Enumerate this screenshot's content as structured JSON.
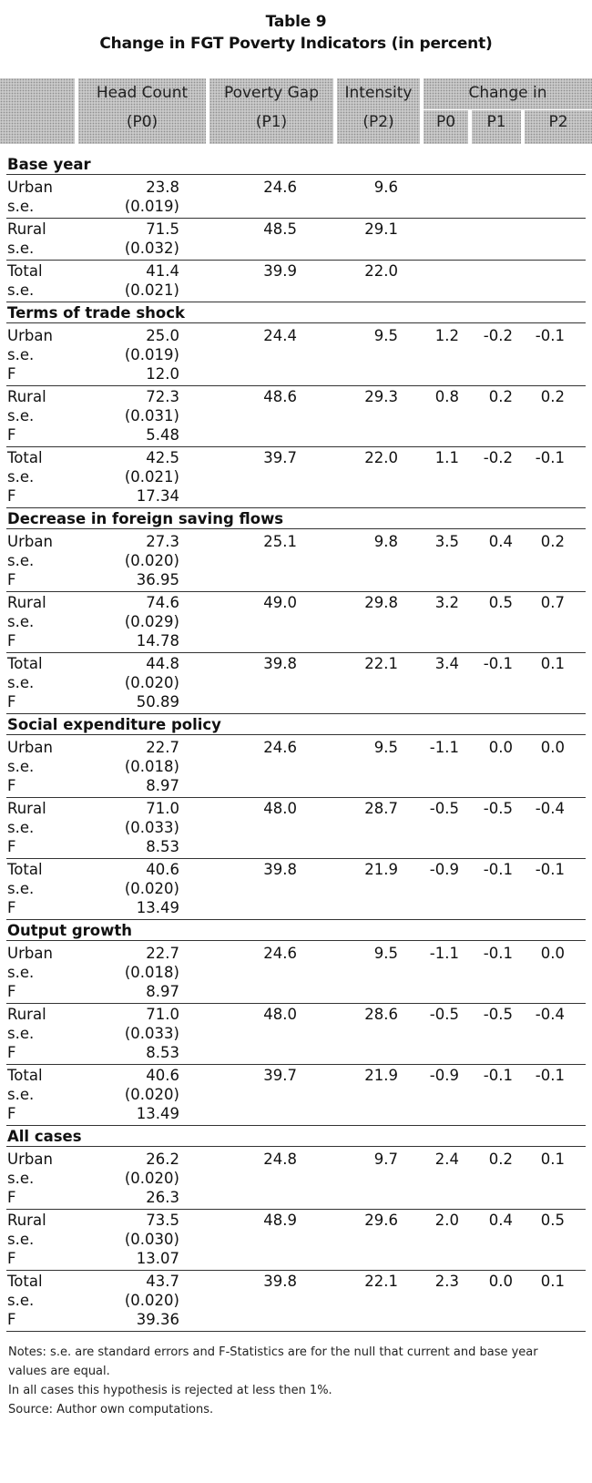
{
  "title": "Table 9",
  "subtitle": "Change in FGT Poverty Indicators (in percent)",
  "header": {
    "head_count": "Head Count",
    "head_count_sub": "(P0)",
    "poverty_gap": "Poverty Gap",
    "poverty_gap_sub": "(P1)",
    "intensity": "Intensity",
    "intensity_sub": "(P2)",
    "change_in": "Change in",
    "change_cols": [
      "P0",
      "P1",
      "P2"
    ]
  },
  "sections": [
    {
      "title": "Base year",
      "groups": [
        {
          "label": "Urban",
          "p0": "23.8",
          "se": "(0.019)",
          "f": null,
          "p1": "24.6",
          "p2": "9.6",
          "c0": "",
          "c1": "",
          "c2": ""
        },
        {
          "label": "Rural",
          "p0": "71.5",
          "se": "(0.032)",
          "f": null,
          "p1": "48.5",
          "p2": "29.1",
          "c0": "",
          "c1": "",
          "c2": ""
        },
        {
          "label": "Total",
          "p0": "41.4",
          "se": "(0.021)",
          "f": null,
          "p1": "39.9",
          "p2": "22.0",
          "c0": "",
          "c1": "",
          "c2": ""
        }
      ]
    },
    {
      "title": "Terms of trade shock",
      "groups": [
        {
          "label": "Urban",
          "p0": "25.0",
          "se": "(0.019)",
          "f": "12.0",
          "p1": "24.4",
          "p2": "9.5",
          "c0": "1.2",
          "c1": "-0.2",
          "c2": "-0.1"
        },
        {
          "label": "Rural",
          "p0": "72.3",
          "se": "(0.031)",
          "f": "5.48",
          "p1": "48.6",
          "p2": "29.3",
          "c0": "0.8",
          "c1": "0.2",
          "c2": "0.2"
        },
        {
          "label": "Total",
          "p0": "42.5",
          "se": "(0.021)",
          "f": "17.34",
          "p1": "39.7",
          "p2": "22.0",
          "c0": "1.1",
          "c1": "-0.2",
          "c2": "-0.1"
        }
      ]
    },
    {
      "title": "Decrease in foreign saving flows",
      "groups": [
        {
          "label": "Urban",
          "p0": "27.3",
          "se": "(0.020)",
          "f": "36.95",
          "p1": "25.1",
          "p2": "9.8",
          "c0": "3.5",
          "c1": "0.4",
          "c2": "0.2"
        },
        {
          "label": "Rural",
          "p0": "74.6",
          "se": "(0.029)",
          "f": "14.78",
          "p1": "49.0",
          "p2": "29.8",
          "c0": "3.2",
          "c1": "0.5",
          "c2": "0.7"
        },
        {
          "label": "Total",
          "p0": "44.8",
          "se": "(0.020)",
          "f": "50.89",
          "p1": "39.8",
          "p2": "22.1",
          "c0": "3.4",
          "c1": "-0.1",
          "c2": "0.1"
        }
      ]
    },
    {
      "title": "Social expenditure policy",
      "groups": [
        {
          "label": "Urban",
          "p0": "22.7",
          "se": "(0.018)",
          "f": "8.97",
          "p1": "24.6",
          "p2": "9.5",
          "c0": "-1.1",
          "c1": "0.0",
          "c2": "0.0"
        },
        {
          "label": "Rural",
          "p0": "71.0",
          "se": "(0.033)",
          "f": "8.53",
          "p1": "48.0",
          "p2": "28.7",
          "c0": "-0.5",
          "c1": "-0.5",
          "c2": "-0.4"
        },
        {
          "label": "Total",
          "p0": "40.6",
          "se": "(0.020)",
          "f": "13.49",
          "p1": "39.8",
          "p2": "21.9",
          "c0": "-0.9",
          "c1": "-0.1",
          "c2": "-0.1"
        }
      ]
    },
    {
      "title": "Output growth",
      "groups": [
        {
          "label": "Urban",
          "p0": "22.7",
          "se": "(0.018)",
          "f": "8.97",
          "p1": "24.6",
          "p2": "9.5",
          "c0": "-1.1",
          "c1": "-0.1",
          "c2": "0.0"
        },
        {
          "label": "Rural",
          "p0": "71.0",
          "se": "(0.033)",
          "f": "8.53",
          "p1": "48.0",
          "p2": "28.6",
          "c0": "-0.5",
          "c1": "-0.5",
          "c2": "-0.4"
        },
        {
          "label": "Total",
          "p0": "40.6",
          "se": "(0.020)",
          "f": "13.49",
          "p1": "39.7",
          "p2": "21.9",
          "c0": "-0.9",
          "c1": "-0.1",
          "c2": "-0.1"
        }
      ]
    },
    {
      "title": "All cases",
      "groups": [
        {
          "label": "Urban",
          "p0": "26.2",
          "se": "(0.020)",
          "f": "26.3",
          "p1": "24.8",
          "p2": "9.7",
          "c0": "2.4",
          "c1": "0.2",
          "c2": "0.1"
        },
        {
          "label": "Rural",
          "p0": "73.5",
          "se": "(0.030)",
          "f": "13.07",
          "p1": "48.9",
          "p2": "29.6",
          "c0": "2.0",
          "c1": "0.4",
          "c2": "0.5"
        },
        {
          "label": "Total",
          "p0": "43.7",
          "se": "(0.020)",
          "f": "39.36",
          "p1": "39.8",
          "p2": "22.1",
          "c0": "2.3",
          "c1": "0.0",
          "c2": "0.1"
        }
      ]
    }
  ],
  "se_label": "s.e.",
  "f_label": "F",
  "notes": [
    "Notes: s.e. are standard errors and F-Statistics are for the null that current and base year",
    "values are equal.",
    "In all cases this hypothesis is rejected at less then 1%.",
    "Source: Author own computations."
  ]
}
